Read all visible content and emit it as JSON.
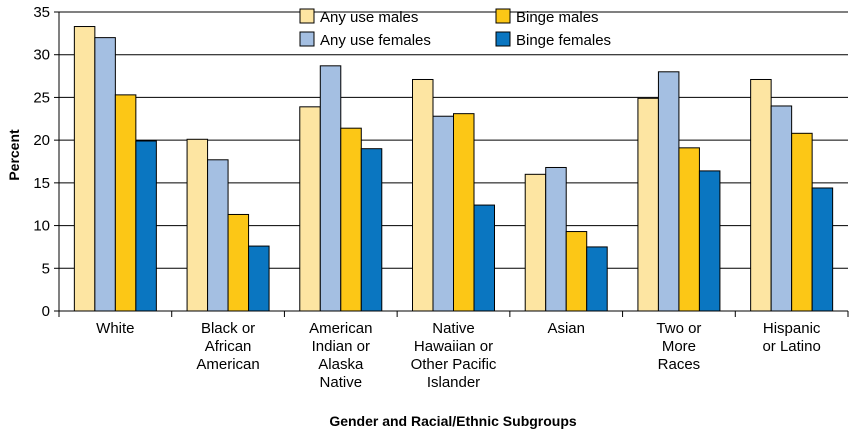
{
  "chart_data": {
    "type": "bar",
    "ylabel": "Percent",
    "xlabel": "Gender and Racial/Ethnic Subgroups",
    "ylim": [
      0,
      35
    ],
    "yticks": [
      0,
      5,
      10,
      15,
      20,
      25,
      30,
      35
    ],
    "grid": true,
    "legend_position": "top-center",
    "categories": [
      [
        "White"
      ],
      [
        "Black or",
        "African",
        "American"
      ],
      [
        "American",
        "Indian or",
        "Alaska",
        "Native"
      ],
      [
        "Native",
        "Hawaiian or",
        "Other Pacific",
        "Islander"
      ],
      [
        "Asian"
      ],
      [
        "Two or",
        "More",
        "Races"
      ],
      [
        "Hispanic",
        "or Latino"
      ]
    ],
    "series": [
      {
        "name": "Any use males",
        "color": "#fde5a2",
        "values": [
          33.3,
          20.1,
          23.9,
          27.1,
          16.0,
          24.9,
          27.1
        ]
      },
      {
        "name": "Any use females",
        "color": "#a4bfe2",
        "values": [
          32.0,
          17.7,
          28.7,
          22.8,
          16.8,
          28.0,
          24.0
        ]
      },
      {
        "name": "Binge males",
        "color": "#fcc716",
        "values": [
          25.3,
          11.3,
          21.4,
          23.1,
          9.3,
          19.1,
          20.8
        ]
      },
      {
        "name": "Binge females",
        "color": "#0a76c1",
        "values": [
          19.9,
          7.6,
          19.0,
          12.4,
          7.5,
          16.4,
          14.4
        ]
      }
    ]
  }
}
